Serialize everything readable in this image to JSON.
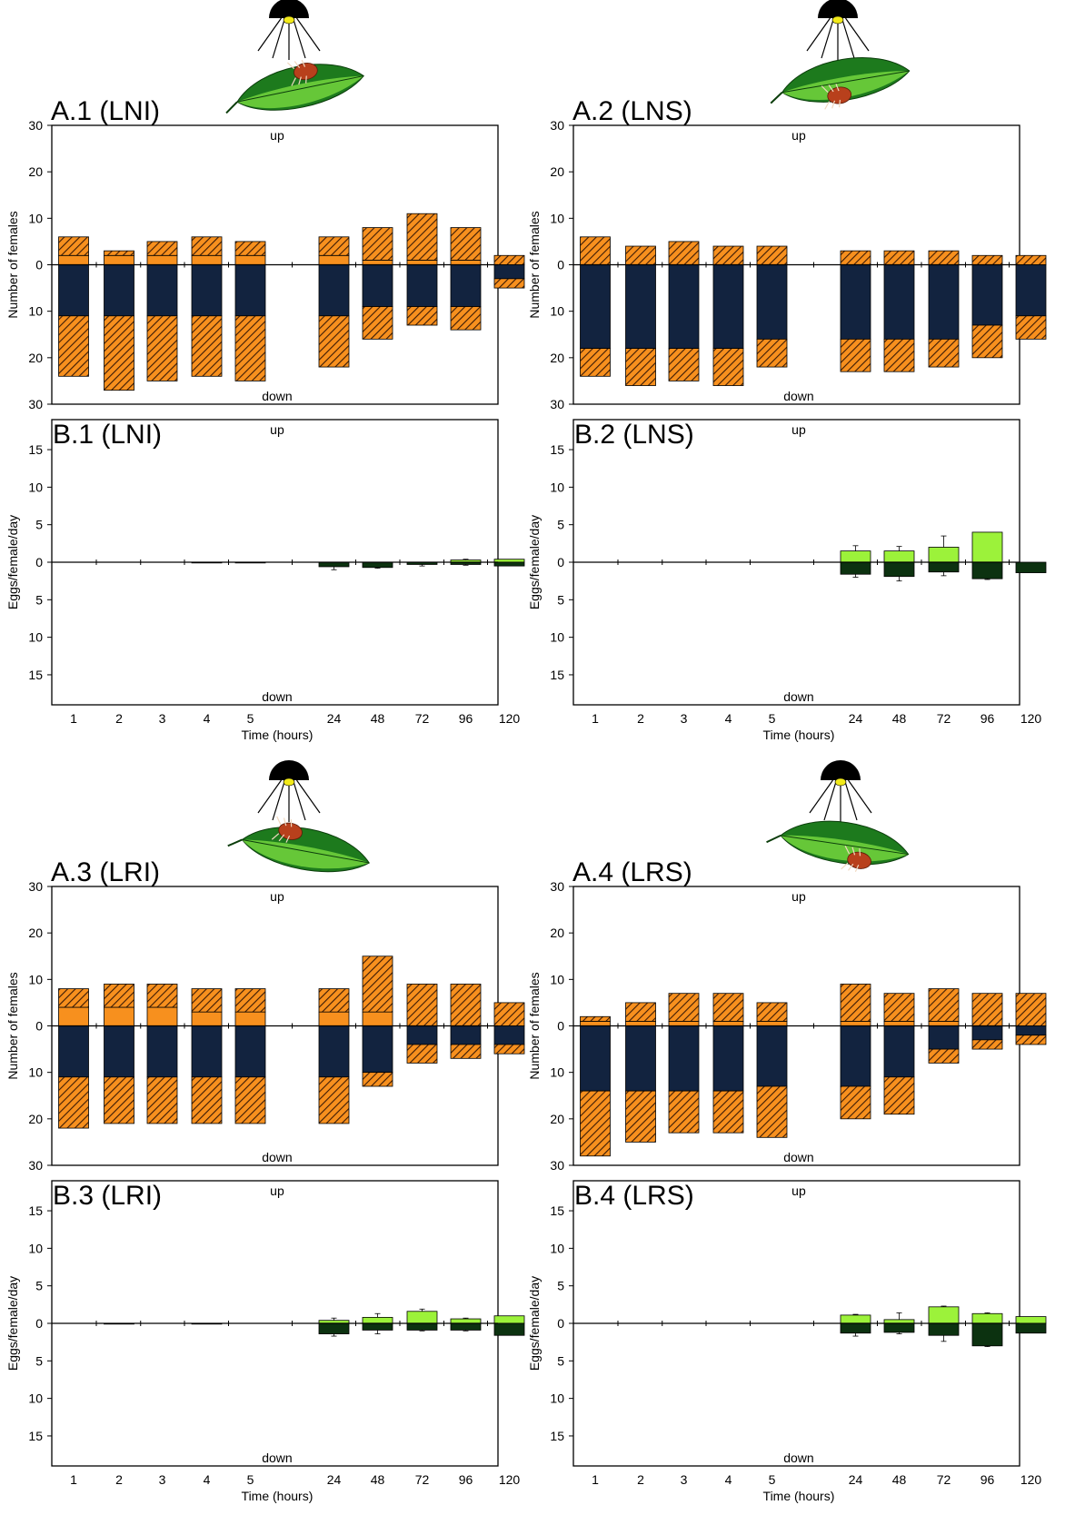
{
  "figure": {
    "x_ticks": [
      "1",
      "2",
      "3",
      "4",
      "5",
      "24",
      "48",
      "72",
      "96",
      "120"
    ],
    "x_label": "Time (hours)",
    "up_label": "up",
    "down_label": "down",
    "a_ylabel": "Number of females",
    "b_ylabel": "Eggs/female/day",
    "a_ticks": [
      "30",
      "20",
      "10",
      "0",
      "10",
      "20",
      "30"
    ],
    "b_ticks": [
      "15",
      "10",
      "5",
      "0",
      "5",
      "10",
      "15"
    ]
  },
  "colors": {
    "orange": "#f7901e",
    "navy": "#12233f",
    "light_green": "#9cf23a",
    "dark_green": "#0c3210",
    "leaf_dark": "#1d7a1d",
    "leaf_light": "#6fcf3c",
    "lamp": "#000000",
    "bulb": "#f2ea1a",
    "mite": "#b8401c"
  },
  "panels": {
    "A1": {
      "title": "A.1 (LNI)"
    },
    "A2": {
      "title": "A.2 (LNS)"
    },
    "A3": {
      "title": "A.3 (LRI)"
    },
    "A4": {
      "title": "A.4 (LRS)"
    },
    "B1": {
      "title": "B.1 (LNI)"
    },
    "B2": {
      "title": "B.2 (LNS)"
    },
    "B3": {
      "title": "B.3 (LRI)"
    },
    "B4": {
      "title": "B.4 (LRS)"
    }
  },
  "chart_data": [
    {
      "id": "A1",
      "type": "bar",
      "title": "A.1 (LNI)",
      "ylabel": "Number of females",
      "ylim": [
        -30,
        30
      ],
      "categories": [
        "1",
        "2",
        "3",
        "4",
        "5",
        "24",
        "48",
        "72",
        "96",
        "120"
      ],
      "series": [],
      "up_solid": [
        2,
        2,
        2,
        2,
        2,
        2,
        1,
        1,
        1,
        0
      ],
      "up_hatched": [
        4,
        1,
        3,
        4,
        3,
        4,
        7,
        10,
        7,
        2
      ],
      "down_solid": [
        11,
        11,
        11,
        11,
        11,
        11,
        9,
        9,
        9,
        3
      ],
      "down_hatched": [
        13,
        16,
        14,
        13,
        14,
        11,
        7,
        4,
        5,
        2
      ]
    },
    {
      "id": "A2",
      "type": "bar",
      "title": "A.2 (LNS)",
      "ylabel": "Number of females",
      "ylim": [
        -30,
        30
      ],
      "categories": [
        "1",
        "2",
        "3",
        "4",
        "5",
        "24",
        "48",
        "72",
        "96",
        "120"
      ],
      "series": [],
      "up_solid": [
        0,
        0,
        0,
        0,
        0,
        0,
        0,
        0,
        0,
        0
      ],
      "up_hatched": [
        6,
        4,
        5,
        4,
        4,
        3,
        3,
        3,
        2,
        2
      ],
      "down_solid": [
        18,
        18,
        18,
        18,
        16,
        16,
        16,
        16,
        13,
        11
      ],
      "down_hatched": [
        6,
        8,
        7,
        8,
        6,
        7,
        7,
        6,
        7,
        5
      ]
    },
    {
      "id": "A3",
      "type": "bar",
      "title": "A.3 (LRI)",
      "ylabel": "Number of females",
      "ylim": [
        -30,
        30
      ],
      "categories": [
        "1",
        "2",
        "3",
        "4",
        "5",
        "24",
        "48",
        "72",
        "96",
        "120"
      ],
      "series": [],
      "up_solid": [
        4,
        4,
        4,
        3,
        3,
        3,
        3,
        0,
        0,
        0
      ],
      "up_hatched": [
        4,
        5,
        5,
        5,
        5,
        5,
        12,
        9,
        9,
        5
      ],
      "down_solid": [
        11,
        11,
        11,
        11,
        11,
        11,
        10,
        4,
        4,
        4
      ],
      "down_hatched": [
        11,
        10,
        10,
        10,
        10,
        10,
        3,
        4,
        3,
        2
      ]
    },
    {
      "id": "A4",
      "type": "bar",
      "title": "A.4 (LRS)",
      "ylabel": "Number of females",
      "ylim": [
        -30,
        30
      ],
      "categories": [
        "1",
        "2",
        "3",
        "4",
        "5",
        "24",
        "48",
        "72",
        "96",
        "120"
      ],
      "series": [],
      "up_solid": [
        1,
        1,
        1,
        1,
        1,
        1,
        1,
        1,
        0,
        0
      ],
      "up_hatched": [
        1,
        4,
        6,
        6,
        4,
        8,
        6,
        7,
        7,
        7
      ],
      "down_solid": [
        14,
        14,
        14,
        14,
        13,
        13,
        11,
        5,
        3,
        2
      ],
      "down_hatched": [
        14,
        11,
        9,
        9,
        11,
        7,
        8,
        3,
        2,
        2
      ]
    },
    {
      "id": "B1",
      "type": "bar",
      "title": "B.1 (LNI)",
      "ylabel": "Eggs/female/day",
      "ylim": [
        -19,
        19
      ],
      "categories": [
        "1",
        "2",
        "3",
        "4",
        "5",
        "24",
        "48",
        "72",
        "96",
        "120"
      ],
      "series": [],
      "up": [
        0,
        0,
        0,
        0,
        0,
        0,
        0,
        0,
        0.3,
        0.4
      ],
      "up_err": [
        0,
        0,
        0,
        0,
        0,
        0,
        0,
        0,
        0.1,
        0
      ],
      "down": [
        0,
        0,
        0,
        0.1,
        0.1,
        0.6,
        0.7,
        0.3,
        0.3,
        0.5
      ],
      "down_err": [
        0,
        0,
        0,
        0,
        0,
        0.4,
        0.1,
        0.2,
        0.1,
        0
      ]
    },
    {
      "id": "B2",
      "type": "bar",
      "title": "B.2 (LNS)",
      "ylabel": "Eggs/female/day",
      "ylim": [
        -19,
        19
      ],
      "categories": [
        "1",
        "2",
        "3",
        "4",
        "5",
        "24",
        "48",
        "72",
        "96",
        "120"
      ],
      "series": [],
      "up": [
        0,
        0,
        0,
        0,
        0,
        1.5,
        1.5,
        2,
        4,
        0
      ],
      "up_err": [
        0,
        0,
        0,
        0,
        0,
        0.7,
        0.6,
        1.5,
        0,
        0
      ],
      "down": [
        0,
        0,
        0,
        0,
        0,
        1.6,
        1.9,
        1.3,
        2.2,
        1.4
      ],
      "down_err": [
        0,
        0,
        0,
        0,
        0,
        0.4,
        0.6,
        0.5,
        0.1,
        0
      ]
    },
    {
      "id": "B3",
      "type": "bar",
      "title": "B.3 (LRI)",
      "ylabel": "Eggs/female/day",
      "ylim": [
        -19,
        19
      ],
      "categories": [
        "1",
        "2",
        "3",
        "4",
        "5",
        "24",
        "48",
        "72",
        "96",
        "120"
      ],
      "series": [],
      "up": [
        0,
        0,
        0,
        0,
        0,
        0.4,
        0.8,
        1.6,
        0.6,
        1
      ],
      "up_err": [
        0,
        0,
        0,
        0,
        0,
        0.3,
        0.5,
        0.3,
        0.1,
        0
      ],
      "down": [
        0,
        0.1,
        0,
        0.1,
        0,
        1.4,
        0.9,
        0.9,
        0.9,
        1.6
      ],
      "down_err": [
        0,
        0,
        0,
        0,
        0,
        0.3,
        0.5,
        0.1,
        0.1,
        0
      ]
    },
    {
      "id": "B4",
      "type": "bar",
      "title": "B.4 (LRS)",
      "ylabel": "Eggs/female/day",
      "ylim": [
        -19,
        19
      ],
      "categories": [
        "1",
        "2",
        "3",
        "4",
        "5",
        "24",
        "48",
        "72",
        "96",
        "120"
      ],
      "series": [],
      "up": [
        0,
        0,
        0,
        0,
        0,
        1.1,
        0.5,
        2.2,
        1.3,
        0.9
      ],
      "up_err": [
        0,
        0,
        0,
        0,
        0,
        0.1,
        0.9,
        0.1,
        0.1,
        0
      ],
      "down": [
        0,
        0,
        0,
        0,
        0,
        1.3,
        1.2,
        1.6,
        3,
        1.3
      ],
      "down_err": [
        0,
        0,
        0,
        0,
        0,
        0.4,
        0.2,
        0.8,
        0.1,
        0
      ]
    }
  ]
}
